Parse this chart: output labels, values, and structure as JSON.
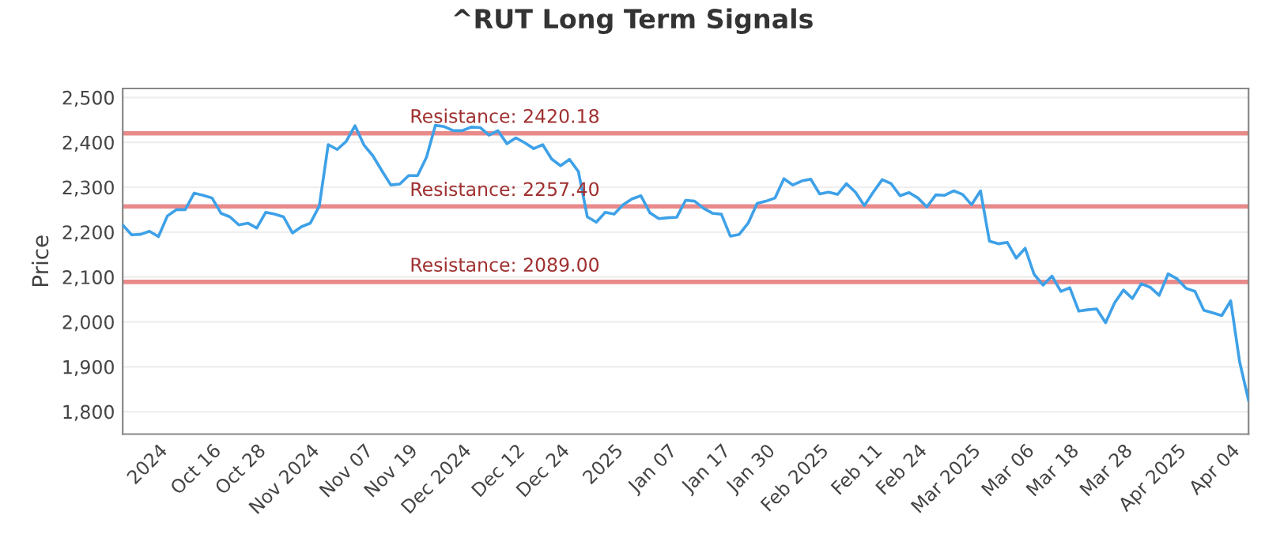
{
  "chart_data": {
    "type": "line",
    "title": "^RUT Long Term Signals",
    "ylabel": "Price",
    "categories": [
      null,
      null,
      null,
      null,
      "2024",
      null,
      null,
      null,
      null,
      null,
      "Oct 16",
      null,
      null,
      null,
      null,
      "Oct 28",
      null,
      null,
      null,
      null,
      null,
      "Nov 2024",
      null,
      null,
      null,
      null,
      null,
      "Nov 07",
      null,
      null,
      null,
      null,
      "Nov 19",
      null,
      null,
      null,
      null,
      null,
      "Dec 2024",
      null,
      null,
      null,
      null,
      null,
      "Dec 12",
      null,
      null,
      null,
      null,
      "Dec 24",
      null,
      null,
      null,
      null,
      null,
      "2025",
      null,
      null,
      null,
      null,
      null,
      "Jan 07",
      null,
      null,
      null,
      null,
      null,
      "Jan 17",
      null,
      null,
      null,
      null,
      "Jan 30",
      null,
      null,
      null,
      null,
      null,
      "Feb 2025",
      null,
      null,
      null,
      null,
      null,
      "Feb 11",
      null,
      null,
      null,
      null,
      "Feb 24",
      null,
      null,
      null,
      null,
      null,
      "Mar 2025",
      null,
      null,
      null,
      null,
      null,
      "Mar 06",
      null,
      null,
      null,
      null,
      "Mar 18",
      null,
      null,
      null,
      null,
      null,
      "Mar 28",
      null,
      null,
      null,
      null,
      null,
      "Apr 2025",
      null,
      null,
      null,
      null,
      null,
      "Apr 04",
      null,
      null
    ],
    "series": [
      {
        "color": "#3ea1e8",
        "values": [
          2216,
          2194,
          2195,
          2202,
          2190,
          2236,
          2250,
          2250,
          2287,
          2282,
          2276,
          2242,
          2234,
          2216,
          2220,
          2209,
          2244,
          2240,
          2234,
          2198,
          2212,
          2220,
          2258,
          2395,
          2384,
          2402,
          2437,
          2394,
          2370,
          2337,
          2305,
          2307,
          2326,
          2326,
          2367,
          2438,
          2435,
          2426,
          2426,
          2434,
          2433,
          2416,
          2426,
          2397,
          2410,
          2399,
          2386,
          2395,
          2363,
          2348,
          2362,
          2335,
          2234,
          2222,
          2244,
          2240,
          2261,
          2274,
          2281,
          2243,
          2230,
          2232,
          2233,
          2271,
          2269,
          2253,
          2242,
          2240,
          2191,
          2195,
          2220,
          2264,
          2269,
          2276,
          2319,
          2305,
          2314,
          2318,
          2285,
          2289,
          2284,
          2308,
          2289,
          2259,
          2289,
          2317,
          2308,
          2281,
          2288,
          2276,
          2256,
          2283,
          2282,
          2292,
          2284,
          2261,
          2292,
          2180,
          2174,
          2177,
          2142,
          2164,
          2106,
          2082,
          2102,
          2068,
          2076,
          2024,
          2027,
          2029,
          1998,
          2042,
          2071,
          2052,
          2085,
          2077,
          2059,
          2107,
          2096,
          2075,
          2068,
          2026,
          2020,
          2014,
          2047,
          1911,
          1825
        ]
      }
    ],
    "ylim": [
      1750,
      2520
    ],
    "yticks": [
      {
        "value": 1800,
        "label": "1,800"
      },
      {
        "value": 1900,
        "label": "1,900"
      },
      {
        "value": 2000,
        "label": "2,000"
      },
      {
        "value": 2100,
        "label": "2,100"
      },
      {
        "value": 2200,
        "label": "2,200"
      },
      {
        "value": 2300,
        "label": "2,300"
      },
      {
        "value": 2400,
        "label": "2,400"
      },
      {
        "value": 2500,
        "label": "2,500"
      }
    ],
    "grid": "y",
    "marker": "none",
    "line_style": "solid",
    "ref_lines": [
      {
        "axis": "y",
        "value": 2420.18,
        "label": "Resistance: 2420.18",
        "color": "#e88a8a"
      },
      {
        "axis": "y",
        "value": 2257.4,
        "label": "Resistance: 2257.40",
        "color": "#e88a8a"
      },
      {
        "axis": "y",
        "value": 2089.0,
        "label": "Resistance: 2089.00",
        "color": "#e88a8a"
      }
    ]
  }
}
